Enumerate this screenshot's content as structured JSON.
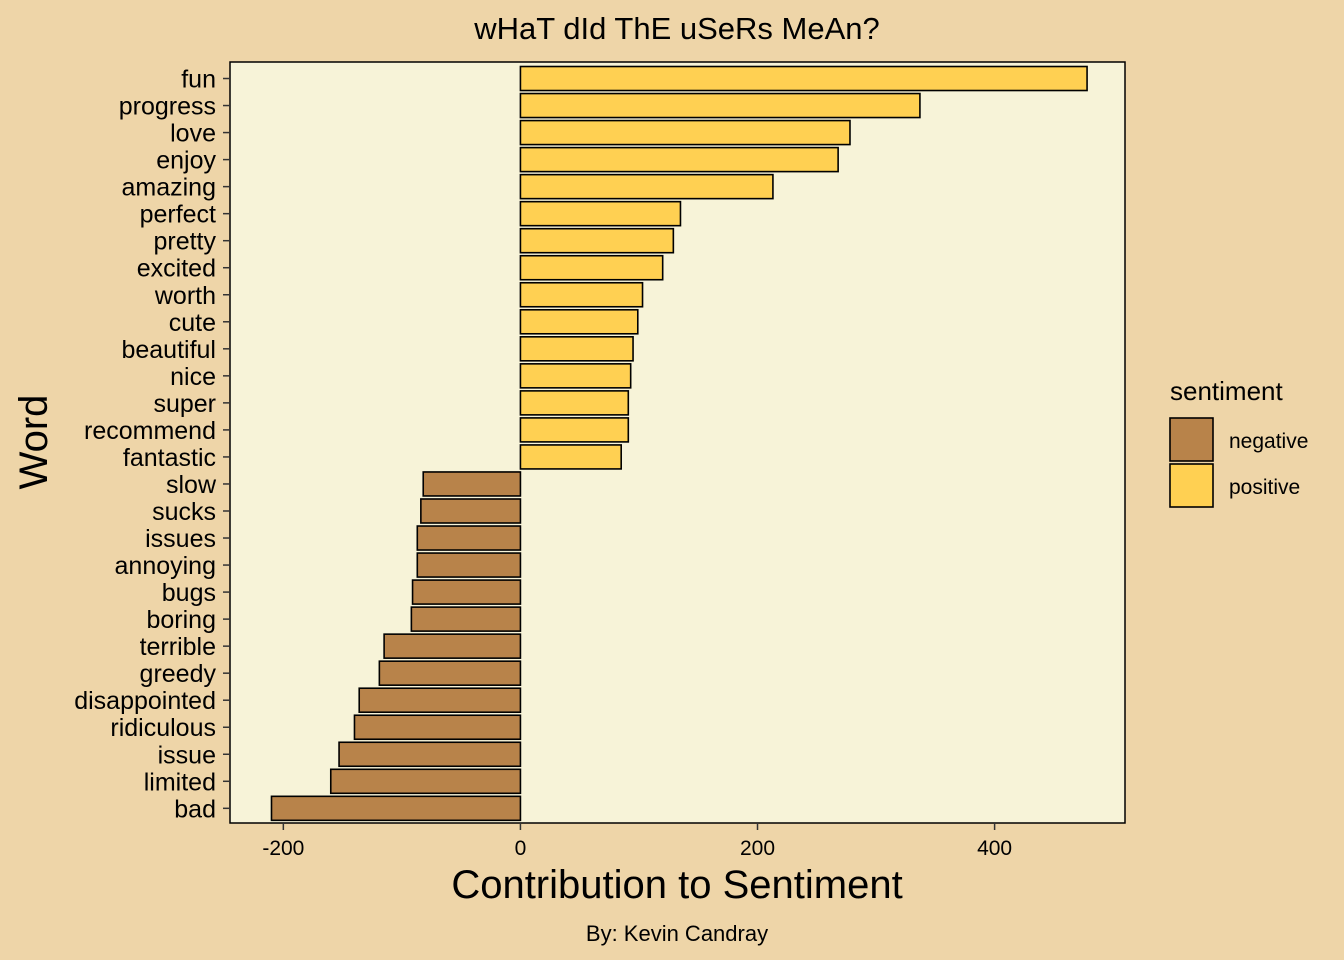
{
  "chart_data": {
    "type": "bar",
    "orientation": "horizontal",
    "title": "wHaT dId ThE uSeRs MeAn?",
    "xlabel": "Contribution to Sentiment",
    "ylabel": "Word",
    "caption": "By: Kevin Candray",
    "xlim": [
      -245,
      510
    ],
    "xticks": [
      -200,
      0,
      200,
      400
    ],
    "xtick_labels": [
      "-200",
      "0",
      "200",
      "400"
    ],
    "grid": false,
    "legend": {
      "title": "sentiment",
      "position": "right",
      "entries": [
        {
          "label": "negative",
          "color": "#B8834A"
        },
        {
          "label": "positive",
          "color": "#FFD052"
        }
      ]
    },
    "colors": {
      "page_background": "#EED5A8",
      "panel_background": "#F7F3D8",
      "negative": "#B8834A",
      "positive": "#FFD052",
      "outline": "#000000"
    },
    "categories": [
      "fun",
      "progress",
      "love",
      "enjoy",
      "amazing",
      "perfect",
      "pretty",
      "excited",
      "worth",
      "cute",
      "beautiful",
      "nice",
      "super",
      "recommend",
      "fantastic",
      "slow",
      "sucks",
      "issues",
      "annoying",
      "bugs",
      "boring",
      "terrible",
      "greedy",
      "disappointed",
      "ridiculous",
      "issue",
      "limited",
      "bad"
    ],
    "values": [
      478,
      337,
      278,
      268,
      213,
      135,
      129,
      120,
      103,
      99,
      95,
      93,
      91,
      91,
      85,
      -82,
      -84,
      -87,
      -87,
      -91,
      -92,
      -115,
      -119,
      -136,
      -140,
      -153,
      -160,
      -210
    ],
    "sentiment": [
      "positive",
      "positive",
      "positive",
      "positive",
      "positive",
      "positive",
      "positive",
      "positive",
      "positive",
      "positive",
      "positive",
      "positive",
      "positive",
      "positive",
      "positive",
      "negative",
      "negative",
      "negative",
      "negative",
      "negative",
      "negative",
      "negative",
      "negative",
      "negative",
      "negative",
      "negative",
      "negative",
      "negative"
    ]
  }
}
